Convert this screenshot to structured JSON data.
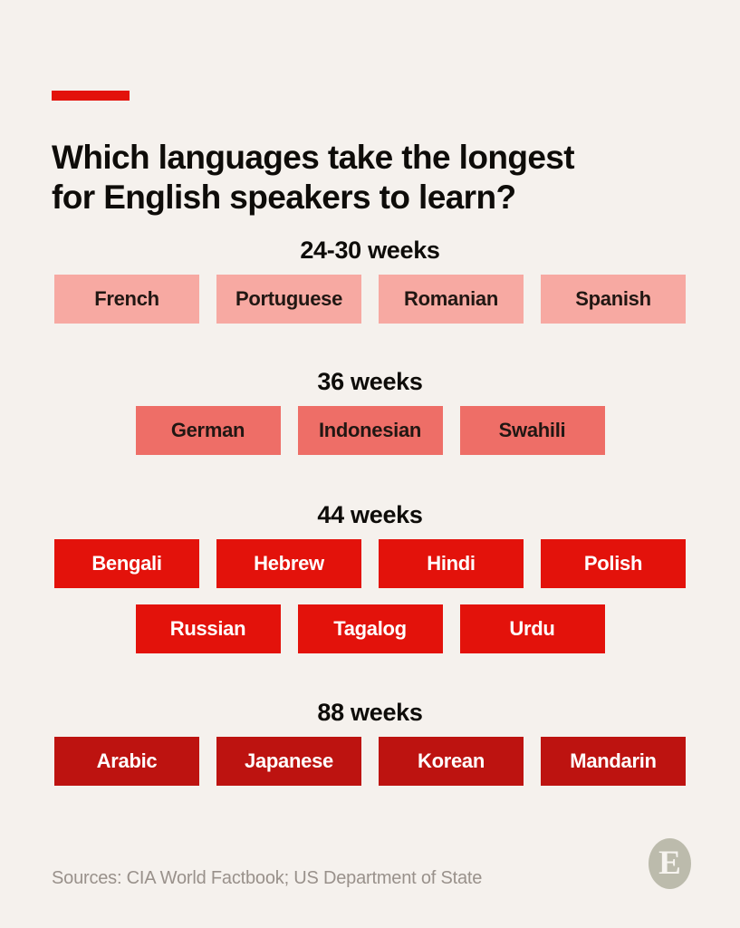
{
  "title": "Which languages take the longest\nfor English speakers to learn?",
  "accent_color": "#E3120B",
  "background_color": "#F5F1ED",
  "groups": [
    {
      "label": "24-30 weeks",
      "tile_bg": "#F7A9A2",
      "tile_text": "#211713",
      "rows": [
        [
          "French",
          "Portuguese",
          "Romanian",
          "Spanish"
        ]
      ]
    },
    {
      "label": "36 weeks",
      "tile_bg": "#EE6E67",
      "tile_text": "#211713",
      "rows": [
        [
          "German",
          "Indonesian",
          "Swahili"
        ]
      ]
    },
    {
      "label": "44 weeks",
      "tile_bg": "#E3120B",
      "tile_text": "#FFFFFF",
      "rows": [
        [
          "Bengali",
          "Hebrew",
          "Hindi",
          "Polish"
        ],
        [
          "Russian",
          "Tagalog",
          "Urdu"
        ]
      ]
    },
    {
      "label": "88 weeks",
      "tile_bg": "#BD1310",
      "tile_text": "#FFFFFF",
      "rows": [
        [
          "Arabic",
          "Japanese",
          "Korean",
          "Mandarin"
        ]
      ]
    }
  ],
  "footer": {
    "sources": "Sources: CIA World Factbook; US Department of State",
    "logo_letter": "E"
  },
  "chart_data": {
    "type": "table",
    "title": "Which languages take the longest for English speakers to learn?",
    "categories": [
      "24-30 weeks",
      "36 weeks",
      "44 weeks",
      "88 weeks"
    ],
    "series": [
      {
        "name": "24-30 weeks",
        "color": "#F7A9A2",
        "languages": [
          "French",
          "Portuguese",
          "Romanian",
          "Spanish"
        ]
      },
      {
        "name": "36 weeks",
        "color": "#EE6E67",
        "languages": [
          "German",
          "Indonesian",
          "Swahili"
        ]
      },
      {
        "name": "44 weeks",
        "color": "#E3120B",
        "languages": [
          "Bengali",
          "Hebrew",
          "Hindi",
          "Polish",
          "Russian",
          "Tagalog",
          "Urdu"
        ]
      },
      {
        "name": "88 weeks",
        "color": "#BD1310",
        "languages": [
          "Arabic",
          "Japanese",
          "Korean",
          "Mandarin"
        ]
      }
    ],
    "legend_position": "none",
    "sources": "CIA World Factbook; US Department of State"
  }
}
